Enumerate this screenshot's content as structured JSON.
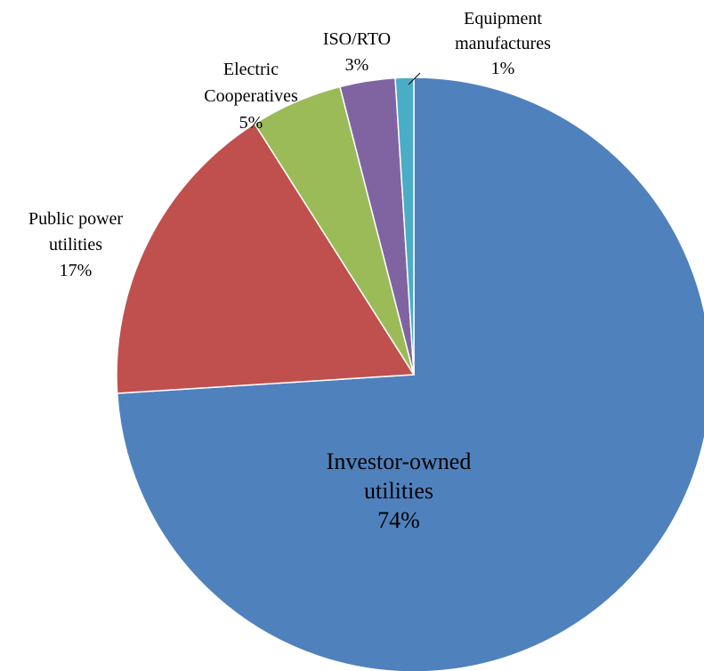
{
  "chart_data": {
    "type": "pie",
    "title": "",
    "start_angle_deg": 0,
    "direction": "clockwise",
    "slices": [
      {
        "label_lines": [
          "Investor-owned",
          "utilities"
        ],
        "value": 74,
        "percent_label": "74%",
        "color": "#4f81bd"
      },
      {
        "label_lines": [
          "Public power",
          "utilities"
        ],
        "value": 17,
        "percent_label": "17%",
        "color": "#c0504d"
      },
      {
        "label_lines": [
          "Electric",
          "Cooperatives"
        ],
        "value": 5,
        "percent_label": "5%",
        "color": "#9bbb59"
      },
      {
        "label_lines": [
          "ISO/RTO"
        ],
        "value": 3,
        "percent_label": "3%",
        "color": "#8064a2"
      },
      {
        "label_lines": [
          "Equipment",
          "manufactures"
        ],
        "value": 1,
        "percent_label": "1%",
        "color": "#4bacc6"
      }
    ]
  }
}
